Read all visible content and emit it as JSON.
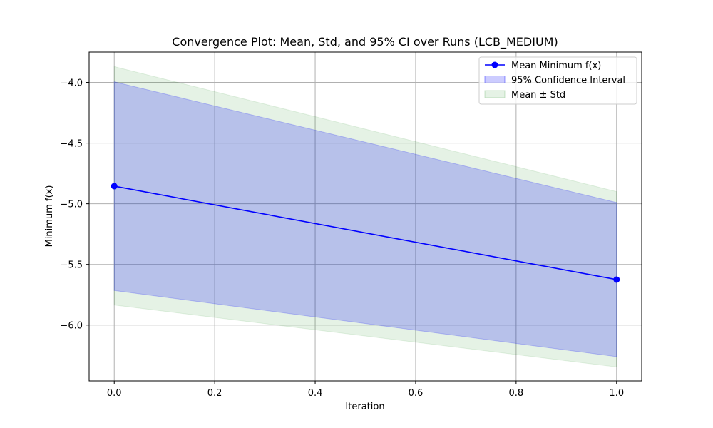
{
  "chart_data": {
    "type": "line",
    "title": "Convergence Plot: Mean, Std, and 95% CI over Runs (LCB_MEDIUM)",
    "xlabel": "Iteration",
    "ylabel": "Minimum f(x)",
    "x": [
      0.0,
      1.0
    ],
    "xlim": [
      -0.05,
      1.05
    ],
    "ylim": [
      -6.46,
      -3.75
    ],
    "xticks": [
      0.0,
      0.2,
      0.4,
      0.6,
      0.8,
      1.0
    ],
    "xtick_labels": [
      "0.0",
      "0.2",
      "0.4",
      "0.6",
      "0.8",
      "1.0"
    ],
    "yticks": [
      -4.0,
      -4.5,
      -5.0,
      -5.5,
      -6.0
    ],
    "ytick_labels": [
      "−4.0",
      "−4.5",
      "−5.0",
      "−5.5",
      "−6.0"
    ],
    "grid": true,
    "legend_position": "top-right",
    "series": [
      {
        "name": "Mean Minimum f(x)",
        "kind": "line",
        "color": "#0000ff",
        "values": [
          -4.855,
          -5.625
        ]
      },
      {
        "name": "95% Confidence Interval",
        "kind": "band",
        "color": "#0000ff",
        "lower": [
          -5.715,
          -6.26
        ],
        "upper": [
          -3.995,
          -4.99
        ]
      },
      {
        "name": "Mean ± Std",
        "kind": "band",
        "color": "#008000",
        "lower": [
          -5.835,
          -6.345
        ],
        "upper": [
          -3.87,
          -4.9
        ]
      }
    ]
  }
}
